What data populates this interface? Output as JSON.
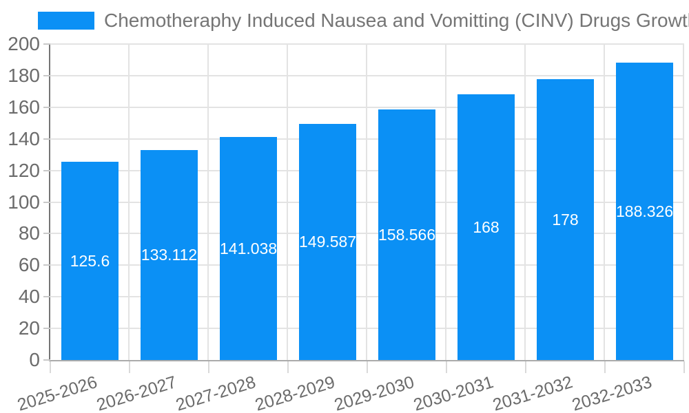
{
  "chart_data": {
    "type": "bar",
    "title": "Chemotheraphy Induced Nausea and Vomitting (CINV) Drugs Growth (%)",
    "categories": [
      "2025-2026",
      "2026-2027",
      "2027-2028",
      "2028-2029",
      "2029-2030",
      "2030-2031",
      "2031-2032",
      "2032-2033"
    ],
    "values": [
      125.6,
      133.112,
      141.038,
      149.5875,
      158.566,
      168,
      178,
      188.326
    ],
    "bar_labels": [
      "125.6",
      "133.112",
      "141.038",
      "149.5875",
      "158.566",
      "168",
      "178",
      "188.326"
    ],
    "xlabel": "",
    "ylabel": "",
    "ylim": [
      0,
      200
    ],
    "yticks": [
      0,
      20,
      40,
      60,
      80,
      100,
      120,
      140,
      160,
      180,
      200
    ],
    "grid": true,
    "legend_position": "top-left",
    "bar_color": "#0b90f5",
    "bar_label_color": "#ffffff",
    "axis_label_color": "#6b6b6b",
    "title_color": "#757575",
    "background_color": "#ffffff"
  }
}
